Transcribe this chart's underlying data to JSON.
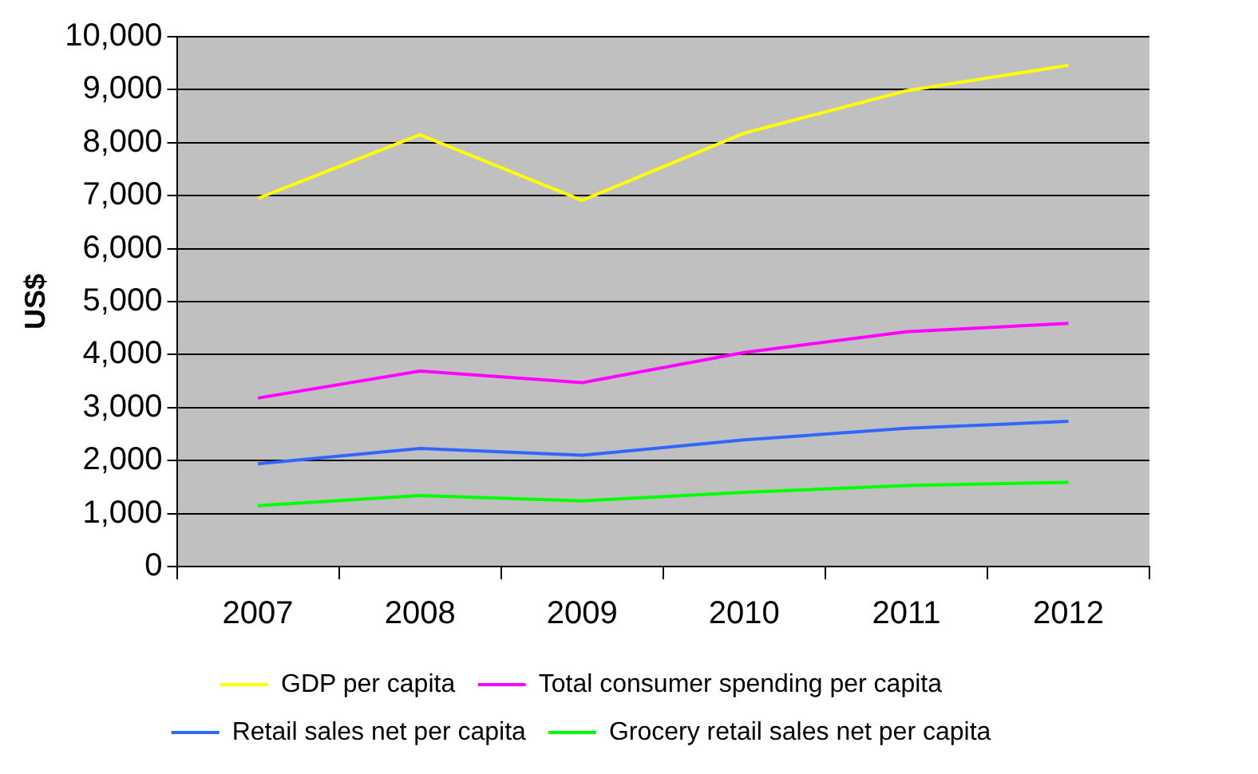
{
  "chart_data": {
    "type": "line",
    "ylabel": "US$",
    "categories": [
      "2007",
      "2008",
      "2009",
      "2010",
      "2011",
      "2012"
    ],
    "series": [
      {
        "name": "GDP per capita",
        "color": "#ffff00",
        "values": [
          6950,
          8150,
          6910,
          8180,
          8980,
          9460
        ]
      },
      {
        "name": "Total consumer spending per capita",
        "color": "#ff00ff",
        "values": [
          3180,
          3690,
          3470,
          4040,
          4430,
          4590
        ]
      },
      {
        "name": "Retail sales net per capita",
        "color": "#3366ff",
        "values": [
          1940,
          2230,
          2100,
          2390,
          2610,
          2740
        ]
      },
      {
        "name": "Grocery retail sales net per capita",
        "color": "#00ff00",
        "values": [
          1150,
          1340,
          1240,
          1400,
          1530,
          1590
        ]
      }
    ],
    "ylim": [
      0,
      10000
    ],
    "yticks": [
      {
        "value": 0,
        "label": "0"
      },
      {
        "value": 1000,
        "label": "1,000"
      },
      {
        "value": 2000,
        "label": "2,000"
      },
      {
        "value": 3000,
        "label": "3,000"
      },
      {
        "value": 4000,
        "label": "4,000"
      },
      {
        "value": 5000,
        "label": "5,000"
      },
      {
        "value": 6000,
        "label": "6,000"
      },
      {
        "value": 7000,
        "label": "7,000"
      },
      {
        "value": 8000,
        "label": "8,000"
      },
      {
        "value": 9000,
        "label": "9,000"
      },
      {
        "value": 10000,
        "label": "10,000"
      }
    ],
    "grid": "y",
    "legend": "bottom",
    "marker": "none",
    "line_style": "solid"
  }
}
